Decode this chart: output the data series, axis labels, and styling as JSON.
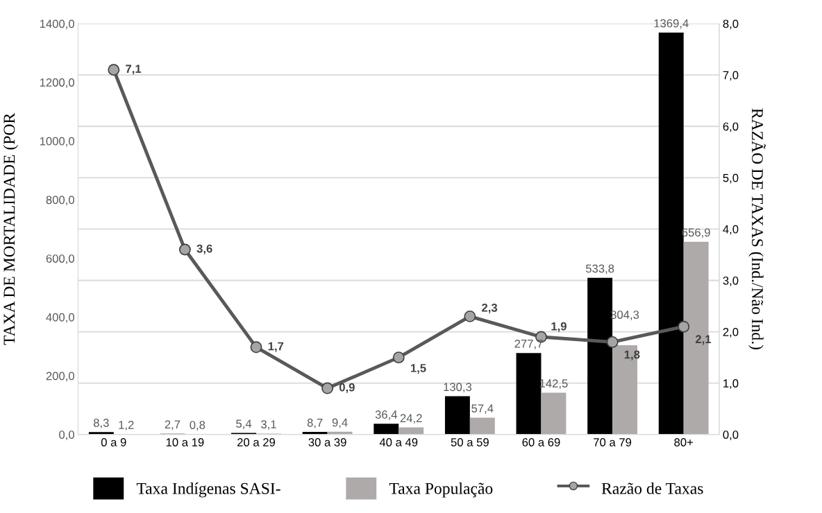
{
  "chart_data": {
    "type": "bar",
    "ylabel": "TAXA DE MORTALIDADE (POR",
    "y2label": "RAZÃO DE TAXAS (Ind./Não Ind.)",
    "categories": [
      "0 a 9",
      "10 a 19",
      "20 a 29",
      "30 a 39",
      "40 a 49",
      "50 a 59",
      "60 a 69",
      "70 a 79",
      "80+"
    ],
    "series": [
      {
        "name": "Taxa Indígenas SASI-",
        "color": "#000000",
        "values": [
          8.3,
          2.7,
          5.4,
          8.7,
          36.4,
          130.3,
          277.7,
          533.8,
          1369.4
        ],
        "value_labels": [
          "8,3",
          "2,7",
          "5,4",
          "8,7",
          "36,4",
          "130,3",
          "277,7",
          "533,8",
          "1369,4"
        ]
      },
      {
        "name": "Taxa População",
        "color": "#aeaaaa",
        "values": [
          1.2,
          0.8,
          3.1,
          9.4,
          24.2,
          57.4,
          142.5,
          304.3,
          656.9
        ],
        "value_labels": [
          "1,2",
          "0,8",
          "3,1",
          "9,4",
          "24,2",
          "57,4",
          "142,5",
          "304,3",
          "656,9"
        ]
      },
      {
        "name": "Razão de Taxas",
        "type": "line",
        "axis": "y2",
        "color": "#595959",
        "marker": "circle",
        "values": [
          7.1,
          3.6,
          1.7,
          0.9,
          1.5,
          2.3,
          1.9,
          1.8,
          2.1
        ],
        "value_labels": [
          "7,1",
          "3,6",
          "1,7",
          "0,9",
          "1,5",
          "2,3",
          "1,9",
          "1,8",
          "2,1"
        ]
      }
    ],
    "ylim": [
      0,
      1400
    ],
    "yticks": [
      {
        "value": 0,
        "label": "0,0"
      },
      {
        "value": 200,
        "label": "200,0"
      },
      {
        "value": 400,
        "label": "400,0"
      },
      {
        "value": 600,
        "label": "600,0"
      },
      {
        "value": 800,
        "label": "800,0"
      },
      {
        "value": 1000,
        "label": "1000,0"
      },
      {
        "value": 1200,
        "label": "1200,0"
      },
      {
        "value": 1400,
        "label": "1400,0"
      }
    ],
    "y2lim": [
      0,
      8
    ],
    "y2ticks": [
      {
        "value": 0,
        "label": "0,0"
      },
      {
        "value": 1,
        "label": "1,0"
      },
      {
        "value": 2,
        "label": "2,0"
      },
      {
        "value": 3,
        "label": "3,0"
      },
      {
        "value": 4,
        "label": "4,0"
      },
      {
        "value": 5,
        "label": "5,0"
      },
      {
        "value": 6,
        "label": "6,0"
      },
      {
        "value": 7,
        "label": "7,0"
      },
      {
        "value": 8,
        "label": "8,0"
      }
    ],
    "grid": "y2",
    "legend": "bottom"
  }
}
